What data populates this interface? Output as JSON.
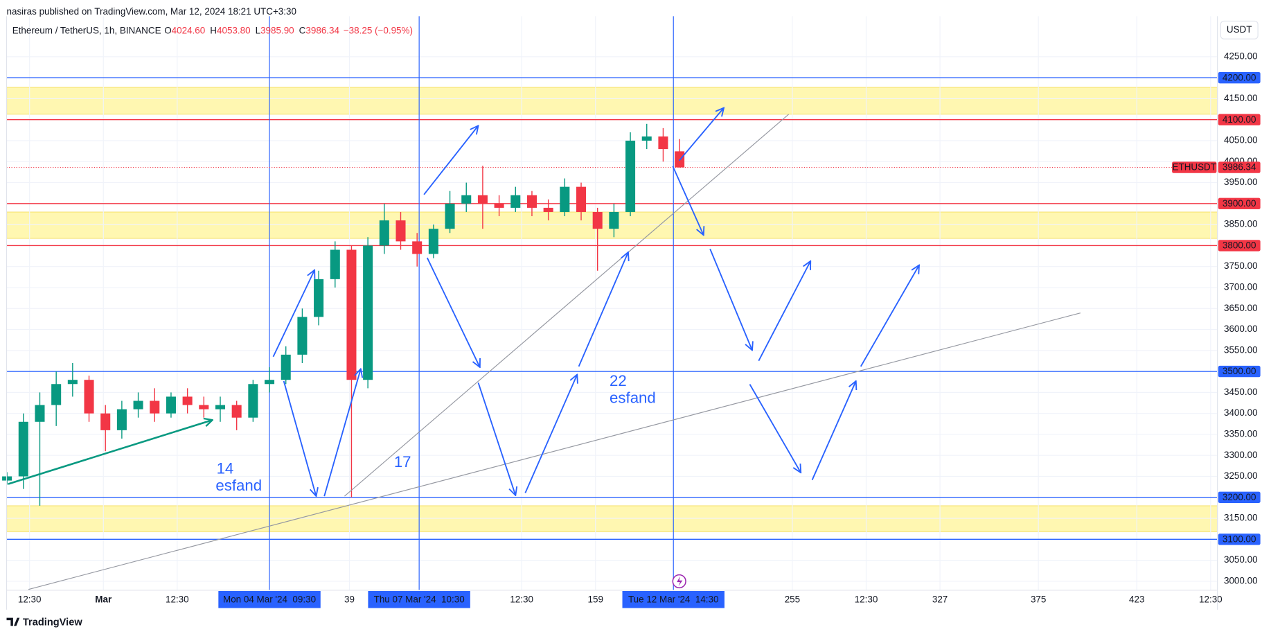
{
  "header": {
    "publisher": "nasiras published on TradingView.com, Mar 12, 2024 18:21 UTC+3:30"
  },
  "chart_data": {
    "type": "candlestick",
    "symbol": "Ethereum / TetherUS, 1h, BINANCE",
    "ohlc": [
      {
        "key": "O",
        "value": "4024.60"
      },
      {
        "key": "H",
        "value": "4053.80"
      },
      {
        "key": "L",
        "value": "3985.90"
      },
      {
        "key": "C",
        "value": "3986.34"
      }
    ],
    "change": "−38.25 (−0.95%)",
    "currency": "USDT",
    "up_color": "#089981",
    "down_color": "#f23645",
    "grid": true,
    "x": [
      -128,
      -120,
      -112,
      -104,
      -96,
      -88,
      -80,
      -72,
      -64,
      -56,
      -48,
      -40,
      -32,
      -24,
      -16,
      -8,
      0,
      8,
      16,
      24,
      32,
      40,
      48,
      56,
      64,
      72,
      80,
      88,
      96,
      104,
      112,
      120,
      128,
      136,
      144,
      152,
      160,
      168,
      176,
      184,
      192,
      200
    ],
    "open": [
      3240,
      3250,
      3380,
      3420,
      3470,
      3480,
      3400,
      3360,
      3410,
      3430,
      3400,
      3440,
      3420,
      3410,
      3420,
      3390,
      3470,
      3480,
      3540,
      3630,
      3720,
      3790,
      3480,
      3800,
      3860,
      3810,
      3780,
      3840,
      3900,
      3920,
      3900,
      3890,
      3920,
      3890,
      3880,
      3940,
      3880,
      3840,
      3880,
      4050,
      4060,
      4024.6
    ],
    "high": [
      3260,
      3400,
      3450,
      3500,
      3520,
      3490,
      3420,
      3430,
      3450,
      3460,
      3450,
      3460,
      3440,
      3440,
      3430,
      3480,
      3510,
      3560,
      3650,
      3740,
      3810,
      3800,
      3820,
      3900,
      3880,
      3830,
      3850,
      3930,
      3950,
      3990,
      3920,
      3940,
      3930,
      3910,
      3960,
      3950,
      3890,
      3900,
      4070,
      4090,
      4080,
      4053.8
    ],
    "low": [
      3230,
      3220,
      3180,
      3370,
      3440,
      3380,
      3310,
      3340,
      3390,
      3380,
      3390,
      3400,
      3390,
      3380,
      3360,
      3380,
      3450,
      3470,
      3520,
      3610,
      3700,
      3200,
      3460,
      3780,
      3790,
      3750,
      3770,
      3830,
      3880,
      3840,
      3870,
      3880,
      3870,
      3860,
      3870,
      3860,
      3740,
      3820,
      3870,
      4030,
      4000,
      3985.9
    ],
    "close": [
      3250,
      3380,
      3420,
      3470,
      3480,
      3400,
      3360,
      3410,
      3430,
      3400,
      3440,
      3420,
      3410,
      3420,
      3390,
      3470,
      3480,
      3540,
      3630,
      3720,
      3790,
      3480,
      3800,
      3860,
      3810,
      3780,
      3840,
      3900,
      3920,
      3900,
      3890,
      3920,
      3890,
      3880,
      3940,
      3880,
      3840,
      3880,
      4050,
      4060,
      4030,
      3986.34
    ],
    "xlim": [
      -128.2,
      462.3
    ],
    "ylim": [
      2978.7,
      4331.1
    ],
    "xticks": [
      {
        "value": -117,
        "label": "12:30"
      },
      {
        "value": -81,
        "label": "Mar"
      },
      {
        "value": -45,
        "label": "12:30"
      },
      39,
      {
        "value": 123,
        "label": "12:30"
      },
      159,
      255,
      {
        "value": 291,
        "label": "12:30"
      },
      327,
      375,
      423,
      {
        "value": 459,
        "label": "12:30"
      }
    ],
    "yticks": [
      {
        "value": 3000,
        "label": "3000.00"
      },
      {
        "value": 3050,
        "label": "3050.00"
      },
      {
        "value": 3150,
        "label": "3150.00"
      },
      {
        "value": 3250,
        "label": "3250.00"
      },
      {
        "value": 3300,
        "label": "3300.00"
      },
      {
        "value": 3350,
        "label": "3350.00"
      },
      {
        "value": 3400,
        "label": "3400.00"
      },
      {
        "value": 3450,
        "label": "3450.00"
      },
      {
        "value": 3550,
        "label": "3550.00"
      },
      {
        "value": 3600,
        "label": "3600.00"
      },
      {
        "value": 3650,
        "label": "3650.00"
      },
      {
        "value": 3700,
        "label": "3700.00"
      },
      {
        "value": 3750,
        "label": "3750.00"
      },
      {
        "value": 3850,
        "label": "3850.00"
      },
      {
        "value": 3950,
        "label": "3950.00"
      },
      {
        "value": 4000,
        "label": "4000.00"
      },
      {
        "value": 4050,
        "label": "4050.00"
      },
      {
        "value": 4150,
        "label": "4150.00"
      },
      {
        "value": 4250,
        "label": "4250.00"
      }
    ],
    "zones": [
      [
        4113,
        4177
      ],
      [
        3817,
        3880
      ],
      [
        3118,
        3180
      ]
    ],
    "levels": [
      {
        "value": 4200,
        "label": "4200.00",
        "color": "#2962ff"
      },
      {
        "value": 4100,
        "label": "4100.00",
        "color": "#f23645"
      },
      {
        "value": 3900,
        "label": "3900.00",
        "color": "#f23645"
      },
      {
        "value": 3800,
        "label": "3800.00",
        "color": "#f23645"
      },
      {
        "value": 3500,
        "label": "3500.00",
        "color": "#2962ff"
      },
      {
        "value": 3200,
        "label": "3200.00",
        "color": "#2962ff"
      },
      {
        "value": 3100,
        "label": "3100.00",
        "color": "#2962ff"
      }
    ],
    "time_markers": [
      {
        "value": 0,
        "label": "Mon 04 Mar '24  09:30"
      },
      {
        "value": 73,
        "label": "Thu 07 Mar '24  10:30"
      },
      {
        "value": 197,
        "label": "Tue 12 Mar '24  14:30"
      }
    ],
    "price_tag": {
      "name": "ETHUSDT",
      "value": 3986.34,
      "label": "3986.34",
      "color": "#f23645"
    },
    "annotations": [
      "14",
      "esfand",
      "17",
      "22",
      "esfand"
    ]
  },
  "footer": {
    "brand": "TradingView"
  }
}
